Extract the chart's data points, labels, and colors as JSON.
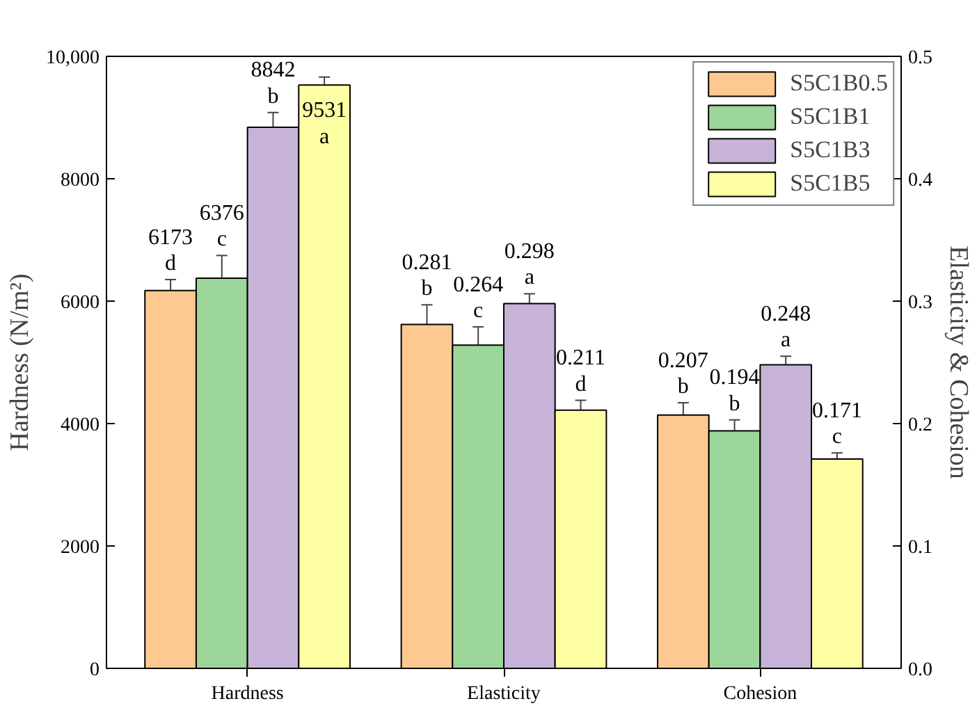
{
  "chart_data": {
    "type": "bar",
    "categories": [
      "Hardness",
      "Elasticity",
      "Cohesion"
    ],
    "ylabel": "Hardness (N/m²)",
    "y2label": "Elasticity & Cohesion",
    "ylim": [
      0,
      10000
    ],
    "yticks": [
      0,
      2000,
      4000,
      6000,
      8000,
      {
        "value": 10000,
        "label": "10,000"
      }
    ],
    "y2lim": [
      0,
      0.5
    ],
    "y2ticks": [
      {
        "value": 0,
        "label": "0.0"
      },
      0.1,
      0.2,
      0.3,
      0.4,
      0.5
    ],
    "legend": "top right",
    "grid": false,
    "series": [
      {
        "name": "S5C1B0.5",
        "color": "#fdc990",
        "values": [
          6173,
          null,
          null
        ],
        "errors": [
          180,
          null,
          null
        ],
        "value_labels": [
          "6173\nd",
          null,
          null
        ]
      },
      {
        "name": "S5C1B1",
        "color": "#9dd69b",
        "values": [
          6376,
          null,
          null
        ],
        "errors": [
          370,
          null,
          null
        ],
        "value_labels": [
          "6376\nc",
          null,
          null
        ]
      },
      {
        "name": "S5C1B3",
        "color": "#c7b3d8",
        "values": [
          8842,
          null,
          null
        ],
        "errors": [
          240,
          null,
          null
        ],
        "value_labels": [
          "8842\nb",
          null,
          null
        ]
      },
      {
        "name": "S5C1B5",
        "color": "#feffa2",
        "values": [
          9531,
          null,
          null
        ],
        "errors": [
          130,
          null,
          null
        ],
        "value_labels": [
          "9531\na",
          null,
          null
        ]
      },
      {
        "color": "#fdc990",
        "axis": "y2",
        "values": [
          null,
          0.281,
          0.207
        ],
        "errors": [
          null,
          0.016,
          0.01
        ],
        "value_labels": [
          null,
          "0.281\nb",
          "0.207\nb"
        ]
      },
      {
        "color": "#9dd69b",
        "axis": "y2",
        "values": [
          null,
          0.264,
          0.194
        ],
        "errors": [
          null,
          0.015,
          0.009
        ],
        "value_labels": [
          null,
          "0.264\nc",
          "0.194\nb"
        ]
      },
      {
        "color": "#c7b3d8",
        "axis": "y2",
        "values": [
          null,
          0.298,
          0.248
        ],
        "errors": [
          null,
          0.008,
          0.007
        ],
        "value_labels": [
          null,
          "0.298\na",
          "0.248\na"
        ]
      },
      {
        "color": "#feffa2",
        "axis": "y2",
        "values": [
          null,
          0.211,
          0.171
        ],
        "errors": [
          null,
          0.008,
          0.005
        ],
        "value_labels": [
          null,
          "0.211\nd",
          "0.171\nc"
        ]
      }
    ]
  }
}
